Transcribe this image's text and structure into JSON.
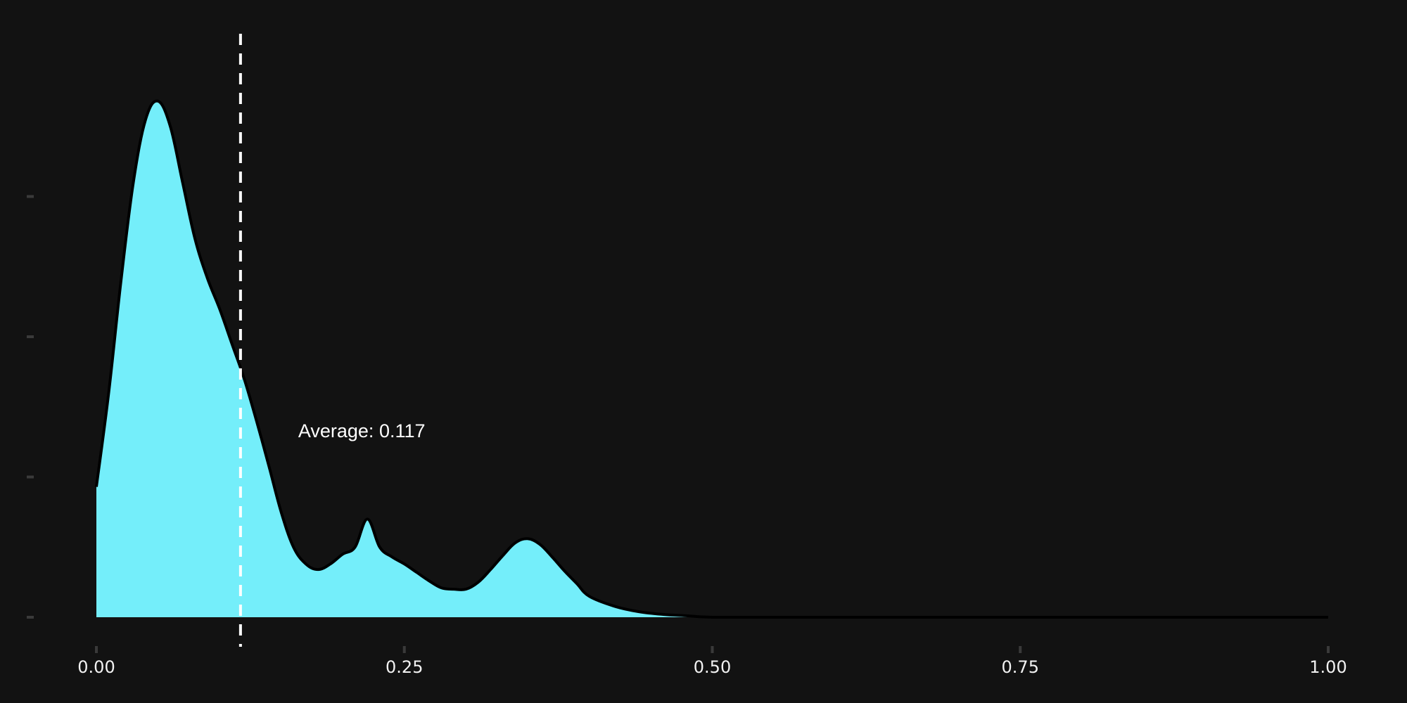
{
  "chart_data": {
    "type": "area",
    "title": "",
    "xlabel": "",
    "ylabel": "",
    "xlim": [
      0,
      1
    ],
    "ylim": [
      0,
      4.0
    ],
    "grid": false,
    "x_ticks": [
      0,
      0.25,
      0.5,
      0.75,
      1.0
    ],
    "x_tick_labels": [
      "0.00",
      "0.25",
      "0.50",
      "0.75",
      "1.00"
    ],
    "y_ticks": [
      0,
      1,
      2,
      3
    ],
    "show_y_tick_labels": false,
    "fill_color": "#74eefa",
    "line_color": "#000000",
    "background_color": "#121212",
    "average": {
      "value": 0.117,
      "label": "Average: 0.117",
      "line_color": "#ffffff"
    },
    "series": [
      {
        "x": [
          0,
          0.01,
          0.02,
          0.03,
          0.04,
          0.05,
          0.06,
          0.07,
          0.08,
          0.09,
          0.1,
          0.11,
          0.12,
          0.13,
          0.14,
          0.15,
          0.16,
          0.17,
          0.18,
          0.19,
          0.2,
          0.21,
          0.22,
          0.23,
          0.24,
          0.25,
          0.26,
          0.27,
          0.28,
          0.29,
          0.3,
          0.31,
          0.32,
          0.33,
          0.34,
          0.35,
          0.36,
          0.37,
          0.38,
          0.39,
          0.4,
          0.42,
          0.44,
          0.46,
          0.48,
          0.5,
          0.55,
          0.6,
          0.7,
          0.8,
          0.9,
          1.0
        ],
        "y": [
          0.93,
          1.6,
          2.4,
          3.1,
          3.55,
          3.68,
          3.5,
          3.1,
          2.7,
          2.42,
          2.2,
          1.95,
          1.7,
          1.4,
          1.08,
          0.75,
          0.5,
          0.38,
          0.34,
          0.38,
          0.45,
          0.5,
          0.7,
          0.5,
          0.43,
          0.38,
          0.32,
          0.26,
          0.21,
          0.2,
          0.2,
          0.25,
          0.34,
          0.44,
          0.53,
          0.56,
          0.52,
          0.43,
          0.33,
          0.24,
          0.15,
          0.08,
          0.04,
          0.02,
          0.01,
          0.0,
          0.0,
          0.0,
          0.0,
          0.0,
          0.0,
          0.0
        ]
      }
    ]
  }
}
